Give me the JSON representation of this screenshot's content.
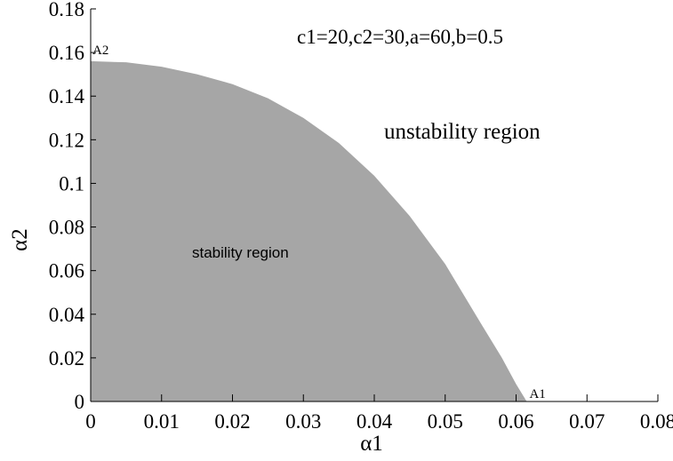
{
  "chart_data": {
    "type": "area",
    "title": "",
    "xlabel": "α1",
    "ylabel": "α2",
    "xlim": [
      0,
      0.08
    ],
    "ylim": [
      0,
      0.18
    ],
    "xticks": [
      "0",
      "0.01",
      "0.02",
      "0.03",
      "0.04",
      "0.05",
      "0.06",
      "0.07",
      "0.08"
    ],
    "yticks": [
      "0",
      "0.02",
      "0.04",
      "0.06",
      "0.08",
      "0.1",
      "0.12",
      "0.14",
      "0.16",
      "0.18"
    ],
    "params_text": "c1=20,c2=30,a=60,b=0.5",
    "stability_label": "stability region",
    "instability_label": "unstability region",
    "boundary": {
      "x": [
        0,
        0.005,
        0.01,
        0.015,
        0.02,
        0.025,
        0.03,
        0.035,
        0.04,
        0.045,
        0.05,
        0.055,
        0.058,
        0.06,
        0.0615
      ],
      "y": [
        0.156,
        0.1555,
        0.1535,
        0.15,
        0.1455,
        0.139,
        0.13,
        0.1185,
        0.1035,
        0.085,
        0.063,
        0.036,
        0.02,
        0.008,
        0
      ]
    },
    "points": [
      {
        "label": "A1",
        "x": 0.0615,
        "y": 0
      },
      {
        "label": "A2",
        "x": 0,
        "y": 0.156
      }
    ],
    "fill_color": "#a6a6a6",
    "axis_color": "#000000",
    "grid": false
  }
}
